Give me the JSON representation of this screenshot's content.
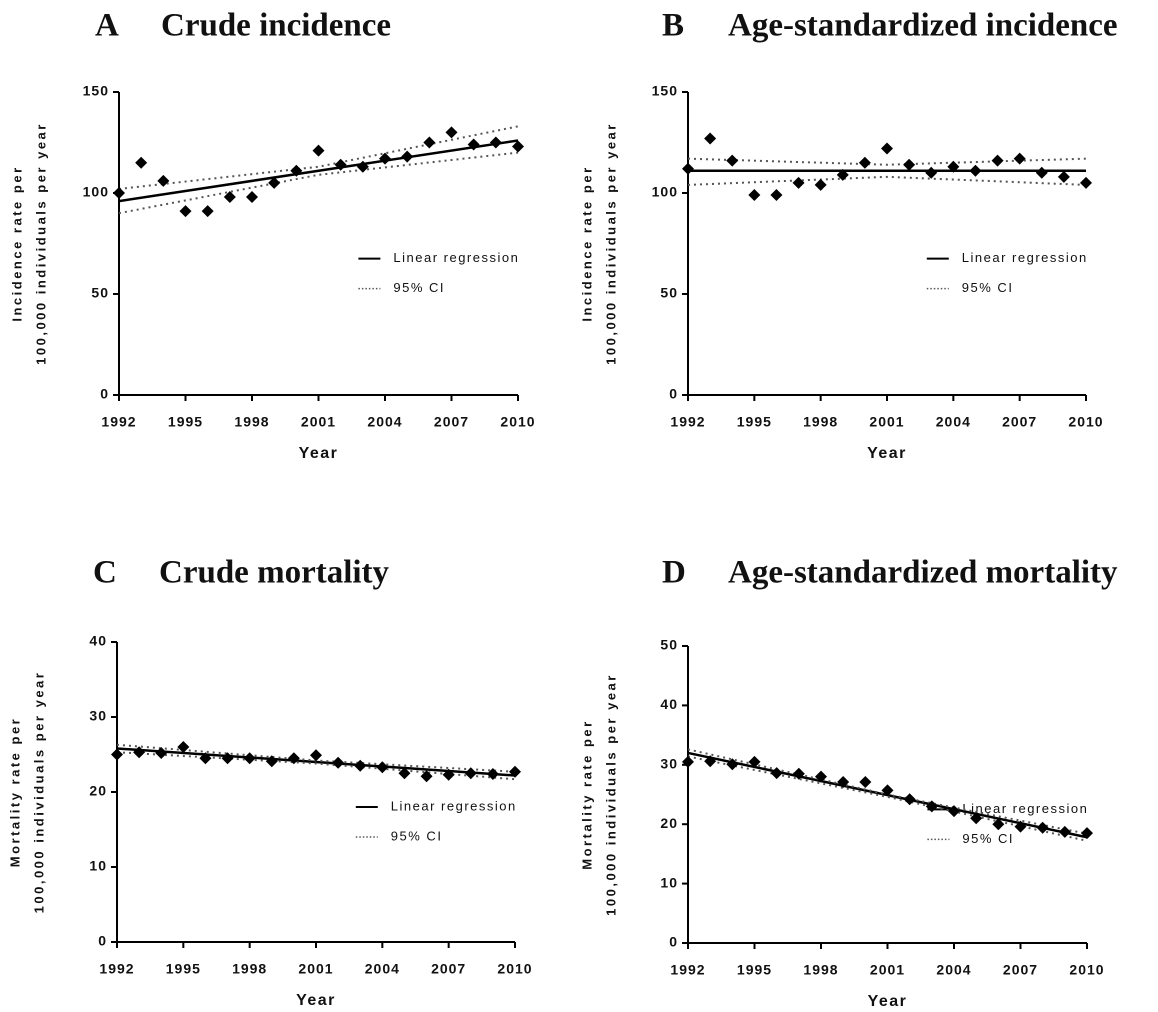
{
  "chart_data": [
    {
      "type": "scatter",
      "panel": "A",
      "title": "Crude incidence",
      "ylabel": [
        "Incidence rate per",
        "100,000 individuals per year"
      ],
      "xlabel": "Year",
      "x": [
        1992,
        1993,
        1994,
        1995,
        1996,
        1997,
        1998,
        1999,
        2000,
        2001,
        2002,
        2003,
        2004,
        2005,
        2006,
        2007,
        2008,
        2009,
        2010
      ],
      "values": [
        100,
        115,
        106,
        91,
        91,
        98,
        98,
        105,
        111,
        121,
        114,
        113,
        117,
        118,
        125,
        130,
        124,
        125,
        123
      ],
      "color": "#000000",
      "xlim": [
        1992,
        2010
      ],
      "xticks": [
        1992,
        1995,
        1998,
        2001,
        2004,
        2007,
        2010
      ],
      "ylim": [
        0,
        150
      ],
      "yticks": [
        0,
        50,
        100,
        150
      ],
      "series": [
        {
          "name": "Linear regression",
          "style": "solid",
          "color": "#000000",
          "x": [
            1992,
            2010
          ],
          "values": [
            96,
            126
          ]
        },
        {
          "name": "95% CI",
          "style": "dotted",
          "color": "#555555",
          "x": [
            1992,
            2001,
            2010
          ],
          "values": [
            102,
            113,
            133
          ],
          "lower": [
            90,
            109,
            120
          ]
        }
      ]
    },
    {
      "type": "scatter",
      "panel": "B",
      "title": "Age-standardized incidence",
      "ylabel": [
        "Incidence rate per",
        "100,000 individuals per year"
      ],
      "xlabel": "Year",
      "x": [
        1992,
        1993,
        1994,
        1995,
        1996,
        1997,
        1998,
        1999,
        2000,
        2001,
        2002,
        2003,
        2004,
        2005,
        2006,
        2007,
        2008,
        2009,
        2010
      ],
      "values": [
        112,
        127,
        116,
        99,
        99,
        105,
        104,
        109,
        115,
        122,
        114,
        110,
        113,
        111,
        116,
        117,
        110,
        108,
        105
      ],
      "color": "#000000",
      "xlim": [
        1992,
        2010
      ],
      "xticks": [
        1992,
        1995,
        1998,
        2001,
        2004,
        2007,
        2010
      ],
      "ylim": [
        0,
        150
      ],
      "yticks": [
        0,
        50,
        100,
        150
      ],
      "series": [
        {
          "name": "Linear regression",
          "style": "solid",
          "color": "#000000",
          "x": [
            1992,
            2010
          ],
          "values": [
            111,
            111
          ]
        },
        {
          "name": "95% CI",
          "style": "dotted",
          "color": "#555555",
          "x": [
            1992,
            2001,
            2010
          ],
          "values": [
            117,
            114,
            117
          ],
          "lower": [
            104,
            108,
            104
          ]
        }
      ]
    },
    {
      "type": "scatter",
      "panel": "C",
      "title": "Crude mortality",
      "ylabel": [
        "Mortality rate per",
        "100,000 individuals per year"
      ],
      "xlabel": "Year",
      "x": [
        1992,
        1993,
        1994,
        1995,
        1996,
        1997,
        1998,
        1999,
        2000,
        2001,
        2002,
        2003,
        2004,
        2005,
        2006,
        2007,
        2008,
        2009,
        2010
      ],
      "values": [
        25,
        25.3,
        25.2,
        26,
        24.5,
        24.5,
        24.5,
        24.1,
        24.5,
        24.9,
        23.9,
        23.5,
        23.3,
        22.5,
        22.1,
        22.3,
        22.5,
        22.4,
        22.7
      ],
      "color": "#000000",
      "xlim": [
        1992,
        2010
      ],
      "xticks": [
        1992,
        1995,
        1998,
        2001,
        2004,
        2007,
        2010
      ],
      "ylim": [
        0,
        40
      ],
      "yticks": [
        0,
        10,
        20,
        30,
        40
      ],
      "series": [
        {
          "name": "Linear regression",
          "style": "solid",
          "color": "#000000",
          "x": [
            1992,
            2010
          ],
          "values": [
            25.8,
            22.2
          ]
        },
        {
          "name": "95% CI",
          "style": "dotted",
          "color": "#555555",
          "x": [
            1992,
            2001,
            2010
          ],
          "values": [
            26.3,
            24.2,
            22.7
          ],
          "lower": [
            25.3,
            23.8,
            21.7
          ]
        }
      ]
    },
    {
      "type": "scatter",
      "panel": "D",
      "title": "Age-standardized mortality",
      "ylabel": [
        "Mortality rate per",
        "100,000 individuals per year"
      ],
      "xlabel": "Year",
      "x": [
        1992,
        1993,
        1994,
        1995,
        1996,
        1997,
        1998,
        1999,
        2000,
        2001,
        2002,
        2003,
        2004,
        2005,
        2006,
        2007,
        2008,
        2009,
        2010
      ],
      "values": [
        30.5,
        30.6,
        30.1,
        30.5,
        28.6,
        28.5,
        28,
        27.1,
        27.1,
        25.7,
        24.2,
        23,
        22.2,
        21,
        20,
        19.6,
        19.4,
        18.7,
        18.5
      ],
      "color": "#000000",
      "xlim": [
        1992,
        2010
      ],
      "xticks": [
        1992,
        1995,
        1998,
        2001,
        2004,
        2007,
        2010
      ],
      "ylim": [
        0,
        50
      ],
      "yticks": [
        0,
        10,
        20,
        30,
        40,
        50
      ],
      "series": [
        {
          "name": "Linear regression",
          "style": "solid",
          "color": "#000000",
          "x": [
            1992,
            2010
          ],
          "values": [
            32,
            17.8
          ]
        },
        {
          "name": "95% CI",
          "style": "dotted",
          "color": "#555555",
          "x": [
            1992,
            2001,
            2010
          ],
          "values": [
            32.6,
            25,
            18.4
          ],
          "lower": [
            31.4,
            24.6,
            17.2
          ]
        }
      ]
    }
  ]
}
